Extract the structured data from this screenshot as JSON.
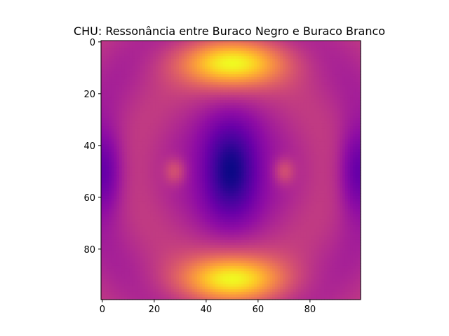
{
  "chart_data": {
    "type": "heatmap",
    "title": "CHU: Ressonância entre Buraco Negro e Buraco Branco",
    "xlabel": "",
    "ylabel": "",
    "grid_size": [
      100,
      100
    ],
    "xlim": [
      -0.5,
      99.5
    ],
    "ylim": [
      99.5,
      -0.5
    ],
    "x_ticks": [
      0,
      20,
      40,
      60,
      80
    ],
    "y_ticks": [
      0,
      20,
      40,
      60,
      80
    ],
    "colormap": "plasma",
    "value_range": [
      0,
      1
    ],
    "grid": false,
    "features": [
      {
        "name": "top band",
        "center": [
          50,
          8
        ],
        "value": 1.0
      },
      {
        "name": "bottom band",
        "center": [
          50,
          92
        ],
        "value": 1.0
      },
      {
        "name": "central minimum",
        "center": [
          49,
          50
        ],
        "value": 0.0
      },
      {
        "name": "left spot",
        "center": [
          28,
          50
        ],
        "value": 0.68
      },
      {
        "name": "right spot",
        "center": [
          70,
          50
        ],
        "value": 0.68
      },
      {
        "name": "left edge lobe",
        "center": [
          2,
          50
        ],
        "value": 0.25
      },
      {
        "name": "right edge lobe",
        "center": [
          97,
          50
        ],
        "value": 0.25
      }
    ]
  }
}
